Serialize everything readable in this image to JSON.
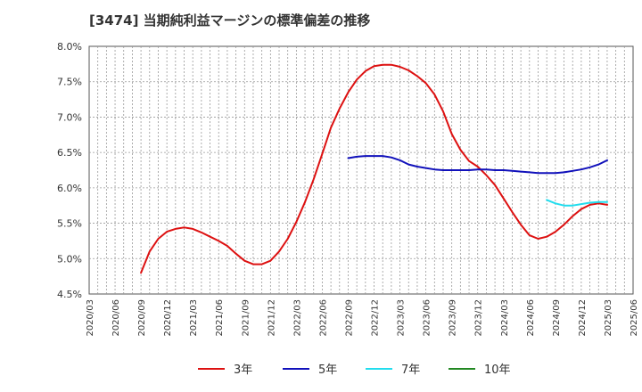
{
  "chart_data": {
    "type": "line",
    "title": "[3474]  当期純利益マージンの標準偏差の推移",
    "xlabel": "",
    "ylabel": "",
    "x_ticks": [
      "2020/03",
      "2020/06",
      "2020/09",
      "2020/12",
      "2021/03",
      "2021/06",
      "2021/09",
      "2021/12",
      "2022/03",
      "2022/06",
      "2022/09",
      "2022/12",
      "2023/03",
      "2023/06",
      "2023/09",
      "2023/12",
      "2024/03",
      "2024/06",
      "2024/09",
      "2024/12",
      "2025/03",
      "2025/06"
    ],
    "y_ticks": [
      "8.0%",
      "7.5%",
      "7.0%",
      "6.5%",
      "6.0%",
      "5.5%",
      "5.0%",
      "4.5%"
    ],
    "ylim": [
      4.5,
      8.0
    ],
    "grid": true,
    "legend_position": "bottom",
    "series": [
      {
        "name": "3年",
        "color": "#dd1111",
        "x": [
          "2020/09",
          "2020/10",
          "2020/11",
          "2020/12",
          "2021/01",
          "2021/02",
          "2021/03",
          "2021/04",
          "2021/05",
          "2021/06",
          "2021/07",
          "2021/08",
          "2021/09",
          "2021/10",
          "2021/11",
          "2021/12",
          "2022/01",
          "2022/02",
          "2022/03",
          "2022/04",
          "2022/05",
          "2022/06",
          "2022/07",
          "2022/08",
          "2022/09",
          "2022/10",
          "2022/11",
          "2022/12",
          "2023/01",
          "2023/02",
          "2023/03",
          "2023/04",
          "2023/05",
          "2023/06",
          "2023/07",
          "2023/08",
          "2023/09",
          "2023/10",
          "2023/11",
          "2023/12",
          "2024/01",
          "2024/02",
          "2024/03",
          "2024/04",
          "2024/05",
          "2024/06",
          "2024/07",
          "2024/08",
          "2024/09",
          "2024/10",
          "2024/11",
          "2024/12",
          "2025/01",
          "2025/02",
          "2025/03"
        ],
        "values": [
          4.8,
          5.1,
          5.28,
          5.38,
          5.42,
          5.44,
          5.42,
          5.37,
          5.31,
          5.25,
          5.18,
          5.07,
          4.97,
          4.92,
          4.92,
          4.97,
          5.1,
          5.28,
          5.52,
          5.8,
          6.12,
          6.48,
          6.85,
          7.12,
          7.35,
          7.53,
          7.65,
          7.72,
          7.74,
          7.74,
          7.71,
          7.66,
          7.58,
          7.48,
          7.32,
          7.08,
          6.76,
          6.54,
          6.38,
          6.3,
          6.18,
          6.04,
          5.85,
          5.66,
          5.48,
          5.33,
          5.28,
          5.31,
          5.38,
          5.48,
          5.6,
          5.7,
          5.76,
          5.78,
          5.76
        ]
      },
      {
        "name": "5年",
        "color": "#1111bb",
        "x": [
          "2022/09",
          "2022/10",
          "2022/11",
          "2022/12",
          "2023/01",
          "2023/02",
          "2023/03",
          "2023/04",
          "2023/05",
          "2023/06",
          "2023/07",
          "2023/08",
          "2023/09",
          "2023/10",
          "2023/11",
          "2023/12",
          "2024/01",
          "2024/02",
          "2024/03",
          "2024/04",
          "2024/05",
          "2024/06",
          "2024/07",
          "2024/08",
          "2024/09",
          "2024/10",
          "2024/11",
          "2024/12",
          "2025/01",
          "2025/02",
          "2025/03"
        ],
        "values": [
          6.42,
          6.44,
          6.45,
          6.45,
          6.45,
          6.43,
          6.39,
          6.33,
          6.3,
          6.28,
          6.26,
          6.25,
          6.25,
          6.25,
          6.25,
          6.26,
          6.26,
          6.25,
          6.25,
          6.24,
          6.23,
          6.22,
          6.21,
          6.21,
          6.21,
          6.22,
          6.24,
          6.26,
          6.29,
          6.33,
          6.39
        ]
      },
      {
        "name": "7年",
        "color": "#22ddee",
        "x": [
          "2024/08",
          "2024/09",
          "2024/10",
          "2024/11",
          "2024/12",
          "2025/01",
          "2025/02",
          "2025/03"
        ],
        "values": [
          5.83,
          5.78,
          5.75,
          5.75,
          5.77,
          5.79,
          5.8,
          5.8
        ]
      },
      {
        "name": "10年",
        "color": "#228822",
        "x": [],
        "values": []
      }
    ]
  }
}
